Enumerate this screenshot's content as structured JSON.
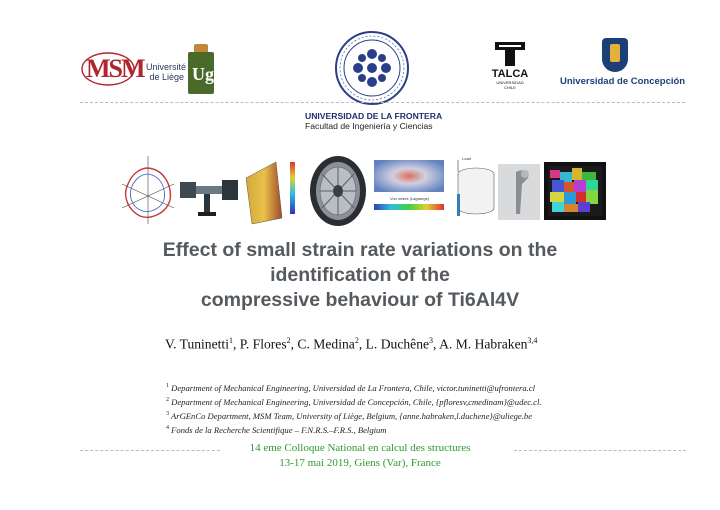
{
  "logos": {
    "msm_text": "MSM",
    "ulg_text_line1": "Université",
    "ulg_text_line2": "de Liège",
    "ulg_mark": "Ug",
    "talca_label": "TALCA",
    "talca_sub1": "UNIVERSIDAD",
    "talca_sub2": "CHILE",
    "udec_label": "Universidad de Concepción"
  },
  "header": {
    "university": "UNIVERSIDAD DE LA FRONTERA",
    "faculty": "Facultad de Ingeniería y Ciencias"
  },
  "images": {
    "legend_label": "Von mises (Lagrange)",
    "load_label": "Load"
  },
  "title": {
    "line1": "Effect of small strain rate variations on the",
    "line2": "identification of the",
    "line3": "compressive behaviour of Ti6Al4V"
  },
  "authors": {
    "a1": "V. Tuninetti",
    "s1": "1",
    "a2": ", P. Flores",
    "s2": "2",
    "a3": ", C. Medina",
    "s3": "2",
    "a4": ", L. Duchêne",
    "s4": "3",
    "a5": ", A. M. Habraken",
    "s5": "3,4"
  },
  "affiliations": [
    {
      "num": "1",
      "text": "Department of Mechanical Engineering, Universidad de La Frontera, Chile, victor.tuninetti@ufrontera.cl"
    },
    {
      "num": "2",
      "text": "Department of Mechanical Engineering, Universidad de Concepción, Chile, {pfloresv,cmedinam}@udec.cl."
    },
    {
      "num": "3",
      "text": "ArGEnCo Department, MSM Team, University of Liège, Belgium, {anne.habraken,l.duchene}@uliege.be"
    },
    {
      "num": "4",
      "text": "Fonds de la Recherche Scientifique – F.N.R.S.–F.R.S., Belgium"
    }
  ],
  "conference": {
    "line1": "14 eme Colloque National en calcul des structures",
    "line2": "13-17 mai 2019, Giens (Var), France"
  },
  "colors": {
    "title": "#555a5f",
    "conference": "#2e9a2e",
    "university": "#1f2f6d"
  }
}
